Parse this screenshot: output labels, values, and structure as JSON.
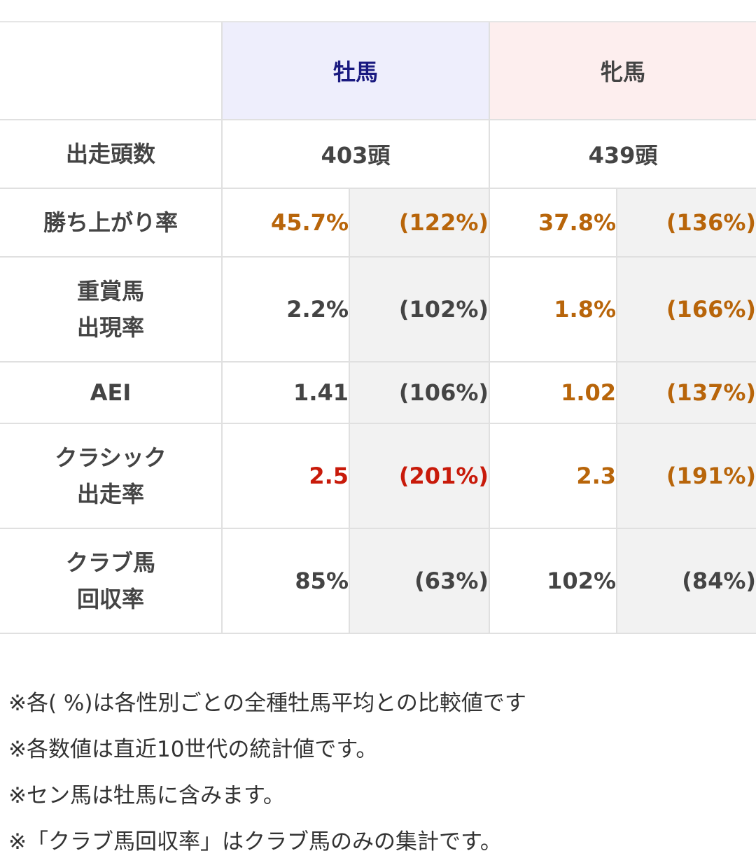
{
  "table": {
    "header": {
      "male": "牡馬",
      "female": "牝馬"
    },
    "count_row": {
      "label": "出走頭数",
      "male": "403頭",
      "female": "439頭"
    },
    "rows": [
      {
        "label_lines": [
          "勝ち上がり率"
        ],
        "male_value": "45.7%",
        "male_compare": "(122%)",
        "female_value": "37.8%",
        "female_compare": "(136%)",
        "colors": {
          "male_value": "orange",
          "male_compare": "orange",
          "female_value": "orange",
          "female_compare": "orange"
        }
      },
      {
        "label_lines": [
          "重賞馬",
          "出現率"
        ],
        "male_value": "2.2%",
        "male_compare": "(102%)",
        "female_value": "1.8%",
        "female_compare": "(166%)",
        "colors": {
          "male_value": "gray",
          "male_compare": "gray",
          "female_value": "orange",
          "female_compare": "orange"
        }
      },
      {
        "label_lines": [
          "AEI"
        ],
        "male_value": "1.41",
        "male_compare": "(106%)",
        "female_value": "1.02",
        "female_compare": "(137%)",
        "colors": {
          "male_value": "gray",
          "male_compare": "gray",
          "female_value": "orange",
          "female_compare": "orange"
        }
      },
      {
        "label_lines": [
          "クラシック",
          "出走率"
        ],
        "male_value": "2.5",
        "male_compare": "(201%)",
        "female_value": "2.3",
        "female_compare": "(191%)",
        "colors": {
          "male_value": "red",
          "male_compare": "red",
          "female_value": "orange",
          "female_compare": "orange"
        }
      },
      {
        "label_lines": [
          "クラブ馬",
          "回収率"
        ],
        "male_value": "85%",
        "male_compare": "(63%)",
        "female_value": "102%",
        "female_compare": "(84%)",
        "colors": {
          "male_value": "gray",
          "male_compare": "gray",
          "female_value": "gray",
          "female_compare": "gray"
        }
      }
    ]
  },
  "palette": {
    "orange": "#b8650a",
    "red": "#c81a0a",
    "gray": "#444444",
    "male_header_bg": "#eeeefc",
    "male_header_text": "#1a1a80",
    "female_header_bg": "#fdeeee",
    "compare_bg": "#f2f2f2"
  },
  "notes": [
    "※各( %)は各性別ごとの全種牡馬平均との比較値です",
    "※各数値は直近10世代の統計値です。",
    "※セン馬は牡馬に含みます。",
    "※「クラブ馬回収率」はクラブ馬のみの集計です。"
  ]
}
